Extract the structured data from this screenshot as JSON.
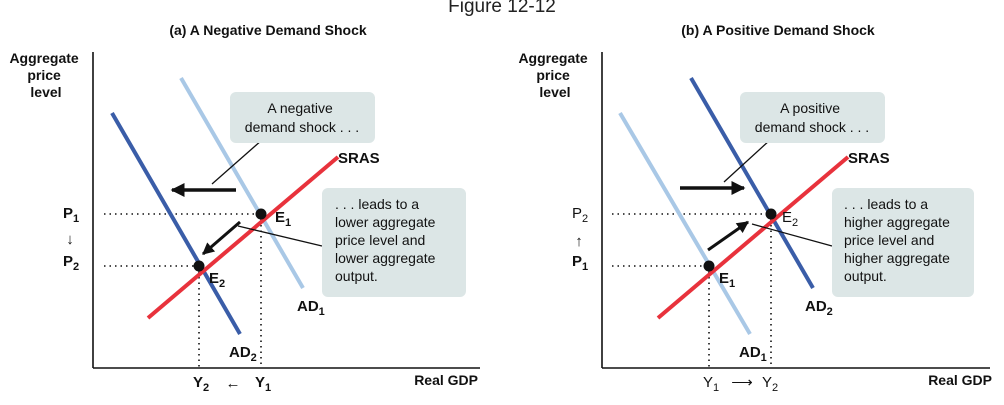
{
  "figure_title": "Figure 12-12",
  "panels": [
    {
      "title": "(a) A Negative Demand Shock",
      "y_axis_label": [
        "Aggregate",
        "price",
        "level"
      ],
      "x_axis_label": "Real GDP",
      "p_top": {
        "text": "P",
        "sub": "1"
      },
      "p_bottom": {
        "text": "P",
        "sub": "2"
      },
      "p_arrow": "↓",
      "y_left": {
        "text": "Y",
        "sub": "2"
      },
      "y_right": {
        "text": "Y",
        "sub": "1"
      },
      "x_arrow": "←",
      "sras_label": "SRAS",
      "ad_light_label": {
        "text": "AD",
        "sub": "1"
      },
      "ad_dark_label": {
        "text": "AD",
        "sub": "2"
      },
      "e_upper": {
        "text": "E",
        "sub": "1"
      },
      "e_lower": {
        "text": "E",
        "sub": "2"
      },
      "callout_top": [
        "A negative",
        "demand shock . . ."
      ],
      "callout_right": [
        ". . . leads to a",
        "lower aggregate",
        "price level and",
        "lower aggregate",
        "output."
      ]
    },
    {
      "title": "(b) A Positive Demand Shock",
      "y_axis_label": [
        "Aggregate",
        "price",
        "level"
      ],
      "x_axis_label": "Real GDP",
      "p_top": {
        "text": "P",
        "sub": "2"
      },
      "p_bottom": {
        "text": "P",
        "sub": "1"
      },
      "p_arrow": "↑",
      "y_left": {
        "text": "Y",
        "sub": "1"
      },
      "y_right": {
        "text": "Y",
        "sub": "2"
      },
      "x_arrow": "⟶",
      "sras_label": "SRAS",
      "ad_light_label": {
        "text": "AD",
        "sub": "1"
      },
      "ad_dark_label": {
        "text": "AD",
        "sub": "2"
      },
      "e_upper": {
        "text": "E",
        "sub": "2"
      },
      "e_lower": {
        "text": "E",
        "sub": "1"
      },
      "callout_top": [
        "A positive",
        "demand shock . . ."
      ],
      "callout_right": [
        ". . . leads to a",
        "higher aggregate",
        "price level and",
        "higher aggregate",
        "output."
      ]
    }
  ],
  "colors": {
    "sras": "#e8323c",
    "ad_dark": "#3a5da8",
    "ad_light": "#a9c8e6",
    "callout_bg": "#dce6e6",
    "axis": "#111111"
  }
}
